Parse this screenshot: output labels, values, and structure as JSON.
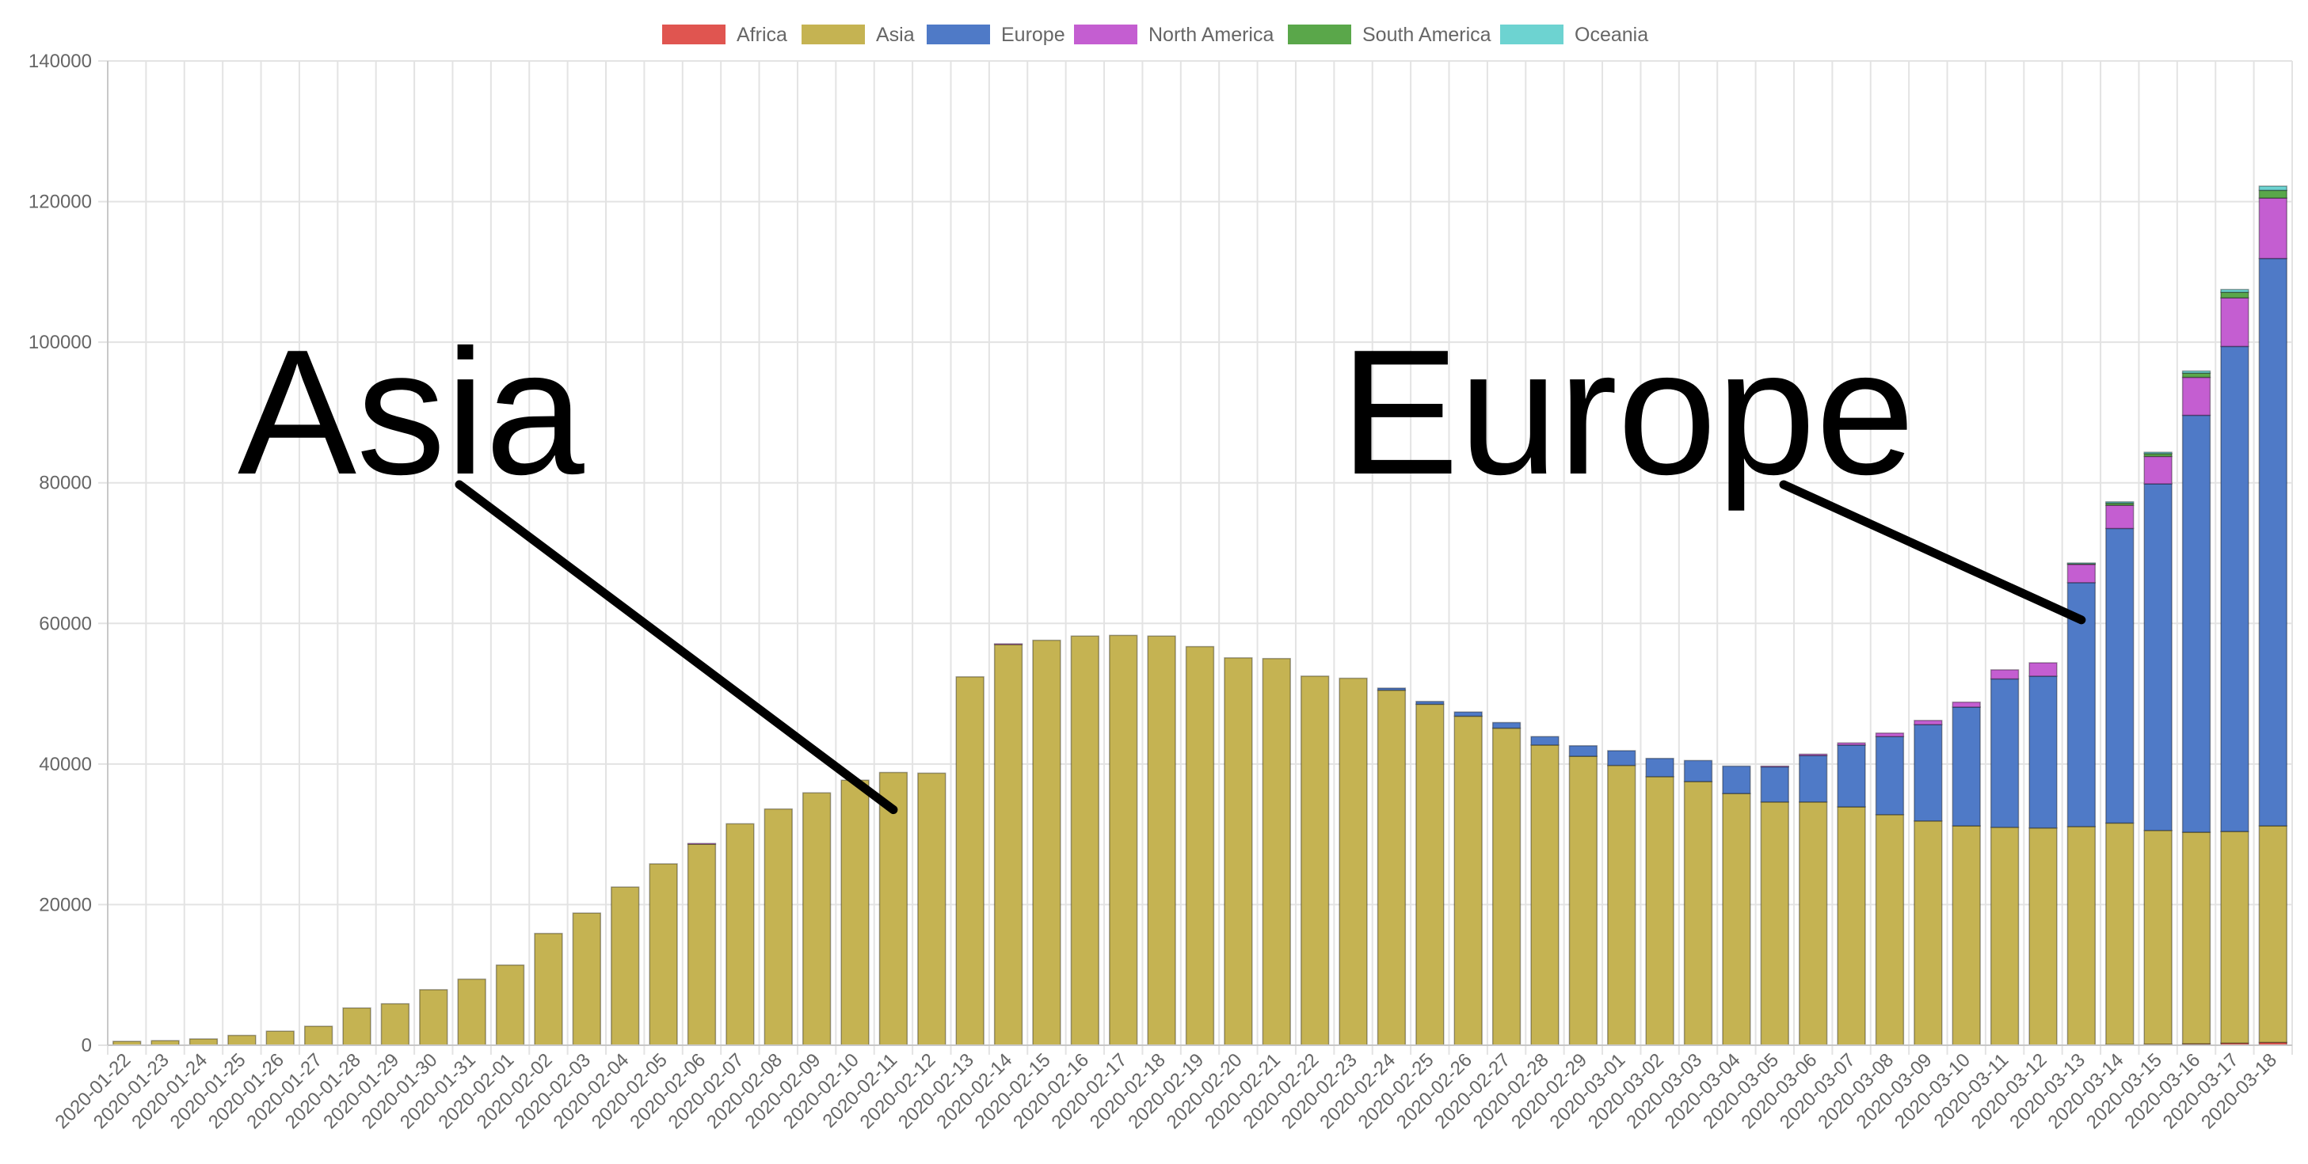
{
  "chart_data": {
    "type": "bar",
    "stacked": true,
    "categories": [
      "2020-01-22",
      "2020-01-23",
      "2020-01-24",
      "2020-01-25",
      "2020-01-26",
      "2020-01-27",
      "2020-01-28",
      "2020-01-29",
      "2020-01-30",
      "2020-01-31",
      "2020-02-01",
      "2020-02-02",
      "2020-02-03",
      "2020-02-04",
      "2020-02-05",
      "2020-02-06",
      "2020-02-07",
      "2020-02-08",
      "2020-02-09",
      "2020-02-10",
      "2020-02-11",
      "2020-02-12",
      "2020-02-13",
      "2020-02-14",
      "2020-02-15",
      "2020-02-16",
      "2020-02-17",
      "2020-02-18",
      "2020-02-19",
      "2020-02-20",
      "2020-02-21",
      "2020-02-22",
      "2020-02-23",
      "2020-02-24",
      "2020-02-25",
      "2020-02-26",
      "2020-02-27",
      "2020-02-28",
      "2020-02-29",
      "2020-03-01",
      "2020-03-02",
      "2020-03-03",
      "2020-03-04",
      "2020-03-05",
      "2020-03-06",
      "2020-03-07",
      "2020-03-08",
      "2020-03-09",
      "2020-03-10",
      "2020-03-11",
      "2020-03-12",
      "2020-03-13",
      "2020-03-14",
      "2020-03-15",
      "2020-03-16",
      "2020-03-17",
      "2020-03-18"
    ],
    "series": [
      {
        "name": "Africa",
        "color": "#e05550",
        "values": [
          0,
          0,
          0,
          0,
          0,
          0,
          0,
          0,
          0,
          0,
          0,
          0,
          0,
          0,
          0,
          0,
          0,
          0,
          0,
          0,
          0,
          0,
          0,
          0,
          0,
          0,
          0,
          0,
          0,
          0,
          0,
          0,
          0,
          0,
          0,
          0,
          0,
          0,
          0,
          0,
          0,
          0,
          0,
          0,
          0,
          0,
          0,
          0,
          0,
          0,
          0,
          0,
          100,
          150,
          200,
          300,
          400
        ]
      },
      {
        "name": "Asia",
        "color": "#c5b352",
        "values": [
          550,
          650,
          900,
          1400,
          2000,
          2700,
          5300,
          5900,
          7900,
          9400,
          11400,
          15900,
          18800,
          22500,
          25800,
          28600,
          31500,
          33600,
          35900,
          37700,
          38800,
          38700,
          52400,
          57000,
          57600,
          58200,
          58300,
          58200,
          56700,
          55100,
          55000,
          52500,
          52200,
          50500,
          48500,
          46800,
          45100,
          42700,
          41100,
          39800,
          38200,
          37500,
          35800,
          34600,
          34600,
          33900,
          32800,
          31900,
          31200,
          31000,
          30900,
          31100,
          31500,
          30400,
          30100,
          30100,
          30800
        ]
      },
      {
        "name": "Europe",
        "color": "#4f7ac7",
        "values": [
          0,
          0,
          0,
          0,
          0,
          0,
          0,
          0,
          0,
          0,
          0,
          0,
          0,
          0,
          0,
          0,
          0,
          0,
          0,
          0,
          0,
          0,
          0,
          0,
          0,
          0,
          0,
          0,
          0,
          0,
          0,
          0,
          0,
          300,
          400,
          600,
          800,
          1200,
          1500,
          2100,
          2600,
          3000,
          3900,
          5000,
          6600,
          8800,
          11100,
          13700,
          16900,
          21100,
          21600,
          34700,
          41900,
          49300,
          59300,
          69000,
          80700
        ]
      },
      {
        "name": "North America",
        "color": "#c45ed1",
        "values": [
          0,
          0,
          0,
          0,
          0,
          0,
          0,
          0,
          0,
          0,
          0,
          0,
          0,
          0,
          0,
          100,
          0,
          0,
          0,
          0,
          0,
          0,
          0,
          100,
          0,
          0,
          0,
          0,
          0,
          0,
          0,
          0,
          0,
          0,
          0,
          0,
          0,
          0,
          0,
          0,
          0,
          0,
          0,
          100,
          200,
          300,
          500,
          600,
          700,
          1300,
          1900,
          2600,
          3300,
          3900,
          5400,
          6900,
          8600
        ]
      },
      {
        "name": "South America",
        "color": "#5aa74a",
        "values": [
          0,
          0,
          0,
          0,
          0,
          0,
          0,
          0,
          0,
          0,
          0,
          0,
          0,
          0,
          0,
          0,
          0,
          0,
          0,
          0,
          0,
          0,
          0,
          0,
          0,
          0,
          0,
          0,
          0,
          0,
          0,
          0,
          0,
          0,
          0,
          0,
          0,
          0,
          0,
          0,
          0,
          0,
          0,
          0,
          0,
          0,
          0,
          0,
          0,
          0,
          0,
          100,
          300,
          400,
          600,
          800,
          1100
        ]
      },
      {
        "name": "Oceania",
        "color": "#6dd3d1",
        "values": [
          0,
          0,
          0,
          0,
          0,
          0,
          0,
          0,
          0,
          0,
          0,
          0,
          0,
          0,
          0,
          0,
          0,
          0,
          0,
          0,
          0,
          0,
          0,
          0,
          0,
          0,
          0,
          0,
          0,
          0,
          0,
          0,
          0,
          0,
          0,
          0,
          0,
          0,
          0,
          0,
          0,
          0,
          0,
          0,
          0,
          0,
          0,
          0,
          0,
          0,
          0,
          100,
          200,
          200,
          300,
          400,
          600
        ]
      }
    ],
    "ylim": [
      0,
      140000
    ],
    "yticks": [
      "0",
      "20000",
      "40000",
      "60000",
      "80000",
      "100000",
      "120000",
      "140000"
    ],
    "grid": true,
    "legend_position": "top",
    "annotations": [
      {
        "text": "Asia",
        "target_category": "2020-02-11",
        "target_value": 33500
      },
      {
        "text": "Europe",
        "target_category": "2020-03-13",
        "target_value": 60500
      }
    ]
  }
}
